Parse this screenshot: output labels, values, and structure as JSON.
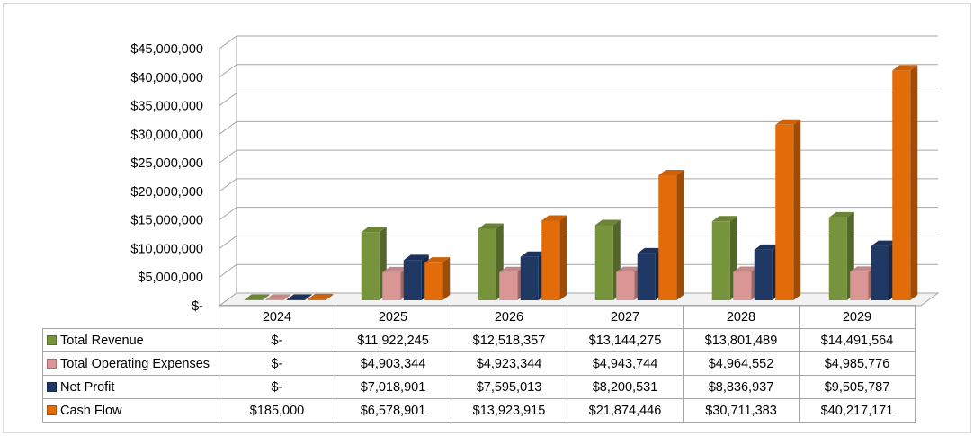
{
  "chart_data": {
    "type": "bar",
    "categories": [
      "2024",
      "2025",
      "2026",
      "2027",
      "2028",
      "2029"
    ],
    "series": [
      {
        "name": "Total Revenue",
        "color": "#77933c",
        "values": [
          0,
          11922245,
          12518357,
          13144275,
          13801489,
          14491564
        ],
        "labels": [
          "$-",
          "$11,922,245",
          "$12,518,357",
          "$13,144,275",
          "$13,801,489",
          "$14,491,564"
        ]
      },
      {
        "name": "Total Operating Expenses",
        "color": "#d99694",
        "values": [
          0,
          4903344,
          4923344,
          4943744,
          4964552,
          4985776
        ],
        "labels": [
          "$-",
          "$4,903,344",
          "$4,923,344",
          "$4,943,744",
          "$4,964,552",
          "$4,985,776"
        ]
      },
      {
        "name": "Net Profit",
        "color": "#1f3864",
        "values": [
          0,
          7018901,
          7595013,
          8200531,
          8836937,
          9505787
        ],
        "labels": [
          "$-",
          "$7,018,901",
          "$7,595,013",
          "$8,200,531",
          "$8,836,937",
          "$9,505,787"
        ]
      },
      {
        "name": "Cash Flow",
        "color": "#e36c09",
        "values": [
          185000,
          6578901,
          13923915,
          21874446,
          30711383,
          40217171
        ],
        "labels": [
          "$185,000",
          "$6,578,901",
          "$13,923,915",
          "$21,874,446",
          "$30,711,383",
          "$40,217,171"
        ]
      }
    ],
    "ylim": [
      0,
      45000000
    ],
    "yticks": [
      "$-",
      "$5,000,000",
      "$10,000,000",
      "$15,000,000",
      "$20,000,000",
      "$25,000,000",
      "$30,000,000",
      "$35,000,000",
      "$40,000,000",
      "$45,000,000"
    ],
    "grid": true,
    "legend": "data-table"
  }
}
